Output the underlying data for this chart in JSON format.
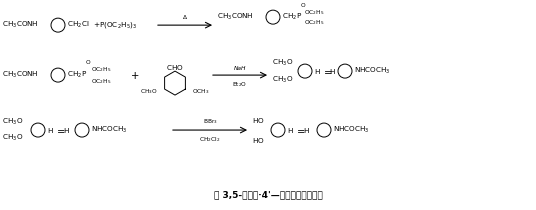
{
  "title": "",
  "background_color": "#ffffff",
  "figsize": [
    5.36,
    2.1
  ],
  "dpi": 100,
  "caption": "反 3,5-二羟基·4'—乙酰氨基二苯乙烯",
  "row1": {
    "left_formula": "CH₃COHN—□—CH₂Cl  +  P(OC₂H₅)₃",
    "arrow": "Δ",
    "right_formula": "CH₃COHN—□—CH₂P(OC₂H₅)₂"
  },
  "row2": {
    "left_formula": "CH₃COHN—□—CH₂P(OC₂H₅)₂  +  CHO-cyclohexene-(OCH₃)₂",
    "arrow": "NaH / Et₂O",
    "right_formula": "(CH₃O)₂-phenyl-CH=CH-phenyl-NHCOCH₃"
  },
  "row3": {
    "left_formula": "(CH₃O)₂-phenyl-CH=CH-phenyl-NHCOCH₃",
    "arrow": "BBr₃ / CH₂Cl₂",
    "right_formula": "HO-phenyl-CH=CH-phenyl-NHCOCH₃"
  }
}
